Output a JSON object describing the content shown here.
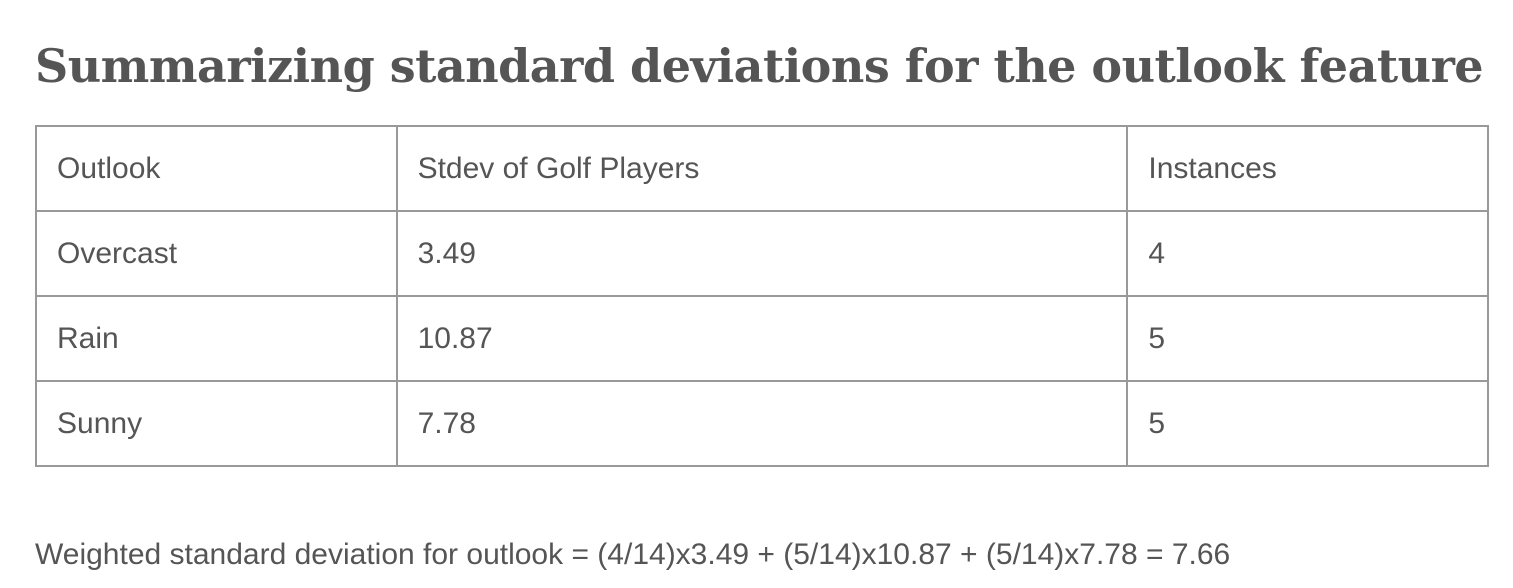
{
  "heading": "Summarizing standard deviations for the outlook feature",
  "table": {
    "headers": [
      "Outlook",
      "Stdev of Golf Players",
      "Instances"
    ],
    "rows": [
      [
        "Overcast",
        "3.49",
        "4"
      ],
      [
        "Rain",
        "10.87",
        "5"
      ],
      [
        "Sunny",
        "7.78",
        "5"
      ]
    ]
  },
  "formula": "Weighted standard deviation for outlook = (4/14)x3.49 + (5/14)x10.87 + (5/14)x7.78 = 7.66"
}
